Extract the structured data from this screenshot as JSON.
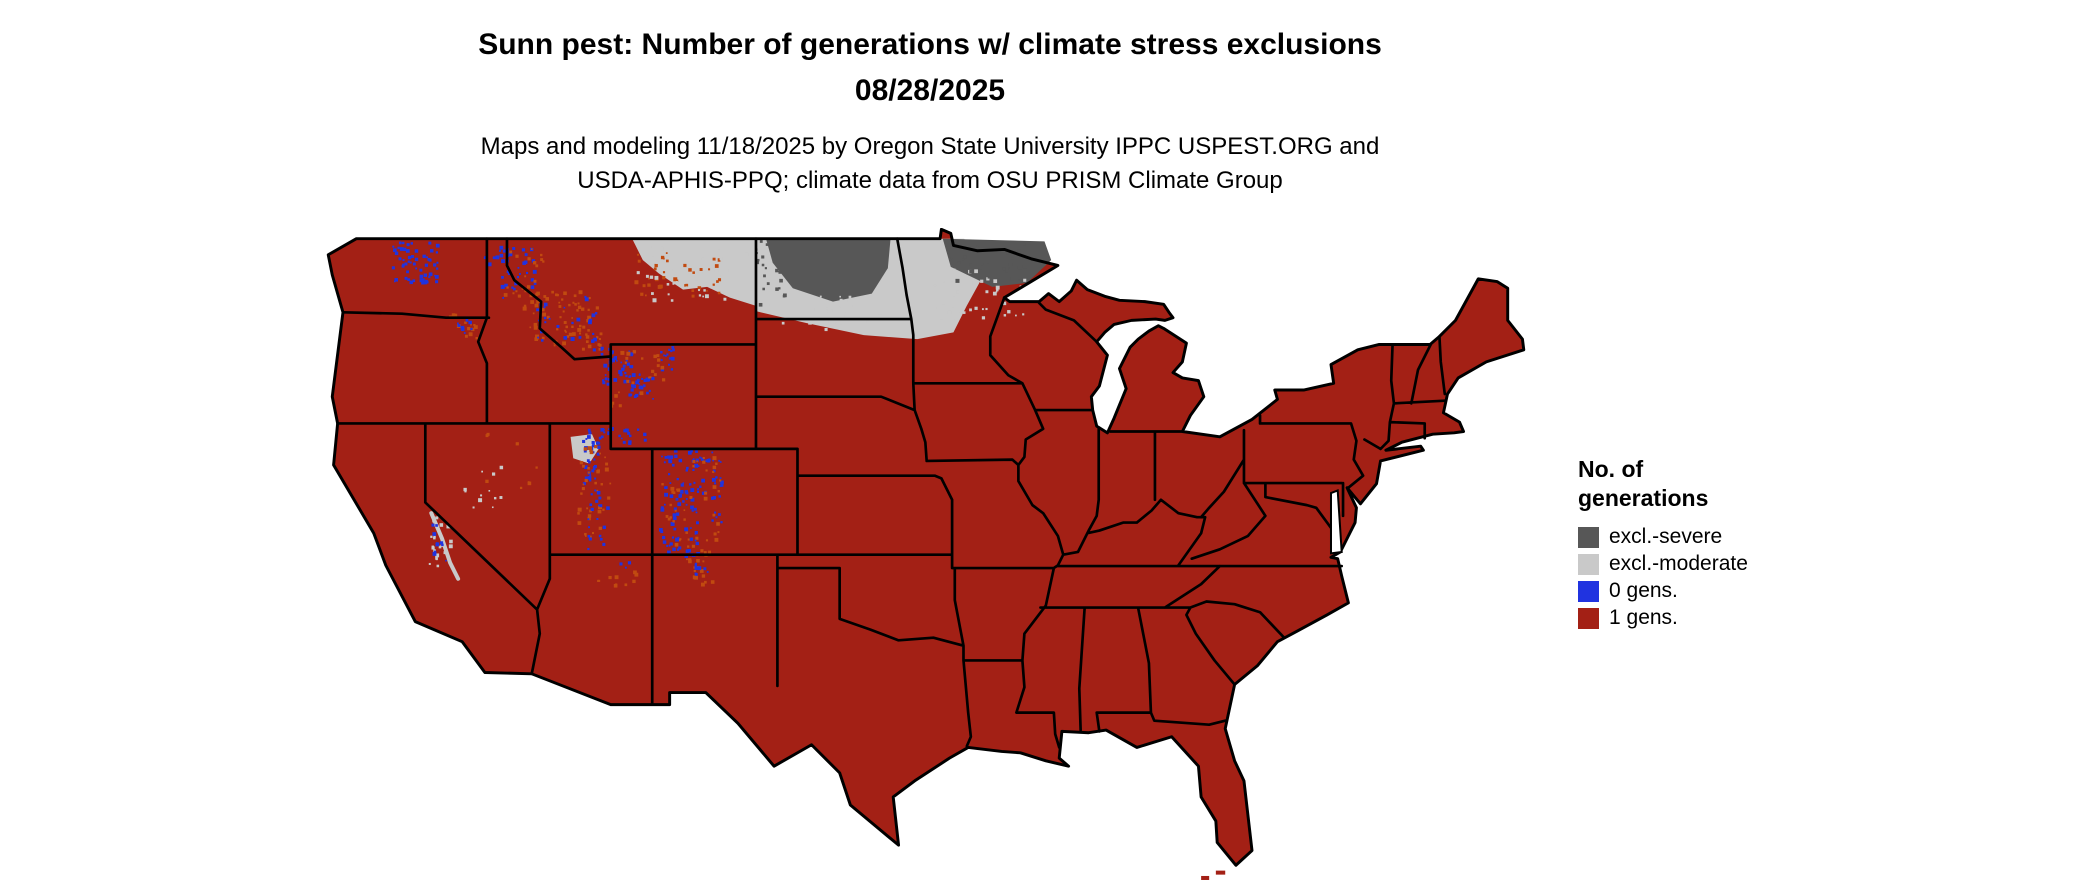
{
  "title_line1": "Sunn pest: Number of generations w/ climate stress exclusions",
  "title_line2": "08/28/2025",
  "subtitle_line1": "Maps and modeling 11/18/2025 by Oregon State University IPPC USPEST.ORG and",
  "subtitle_line2": "USDA-APHIS-PPQ; climate data from OSU PRISM Climate Group",
  "legend": {
    "title_line1": "No. of",
    "title_line2": "generations",
    "items": [
      {
        "key": "severe",
        "label": "excl.-severe",
        "color": "#575757"
      },
      {
        "key": "moderate",
        "label": "excl.-moderate",
        "color": "#c9c9c9"
      },
      {
        "key": "zero",
        "label": "0 gens.",
        "color": "#2033e0"
      },
      {
        "key": "one",
        "label": "1 gens.",
        "color": "#a32015"
      }
    ]
  }
}
